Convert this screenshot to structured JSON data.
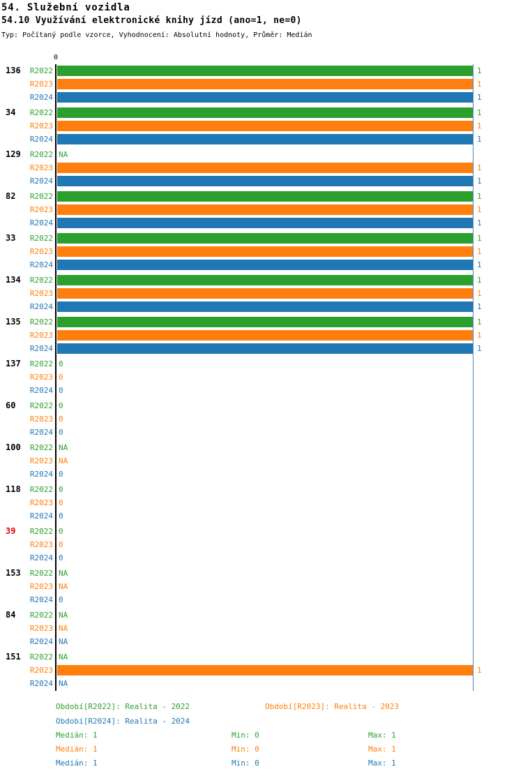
{
  "header": {
    "title1": "54. Služební vozidla",
    "title2": "54.10 Využívání elektronické knihy jízd (ano=1, ne=0)",
    "subtitle": "Typ: Počítaný podle vzorce, Vyhodnocení: Absolutní hodnoty, Průměr: Medián"
  },
  "chart_data": {
    "type": "bar",
    "orientation": "horizontal",
    "title": "54.10 Využívání elektronické knihy jízd (ano=1, ne=0)",
    "xlim": [
      0,
      1
    ],
    "x_zero_tick": "0",
    "na_text": "NA",
    "series": [
      "R2022",
      "R2023",
      "R2024"
    ],
    "series_colors": [
      "#2ca02c",
      "#ff7f0e",
      "#1f77b4"
    ],
    "groups": [
      {
        "id": "136",
        "values": [
          1,
          1,
          1
        ]
      },
      {
        "id": "34",
        "values": [
          1,
          1,
          1
        ]
      },
      {
        "id": "129",
        "values": [
          "NA",
          1,
          1
        ]
      },
      {
        "id": "82",
        "values": [
          1,
          1,
          1
        ]
      },
      {
        "id": "33",
        "values": [
          1,
          1,
          1
        ]
      },
      {
        "id": "134",
        "values": [
          1,
          1,
          1
        ]
      },
      {
        "id": "135",
        "values": [
          1,
          1,
          1
        ]
      },
      {
        "id": "137",
        "values": [
          0,
          0,
          0
        ]
      },
      {
        "id": "60",
        "values": [
          0,
          0,
          0
        ]
      },
      {
        "id": "100",
        "values": [
          "NA",
          "NA",
          0
        ]
      },
      {
        "id": "118",
        "values": [
          0,
          0,
          0
        ]
      },
      {
        "id": "39",
        "values": [
          0,
          0,
          0
        ],
        "highlighted": true
      },
      {
        "id": "153",
        "values": [
          "NA",
          "NA",
          0
        ]
      },
      {
        "id": "84",
        "values": [
          "NA",
          "NA",
          "NA"
        ]
      },
      {
        "id": "151",
        "values": [
          "NA",
          1,
          "NA"
        ]
      }
    ]
  },
  "colors": {
    "r2022": "#2ca02c",
    "r2023": "#ff7f0e",
    "r2024": "#1f77b4",
    "highlight_id": "#ee0000",
    "axis": "#000000",
    "max_line": "#4f81bd"
  },
  "legend": {
    "items": [
      {
        "series": "R2022",
        "label": "Období[R2022]: Realita - 2022"
      },
      {
        "series": "R2023",
        "label": "Období[R2023]: Realita - 2023"
      },
      {
        "series": "R2024",
        "label": "Období[R2024]: Realita - 2024"
      }
    ]
  },
  "stats": {
    "rows": [
      {
        "series": "R2022",
        "median": "Medián: 1",
        "min": "Min: 0",
        "max": "Max: 1"
      },
      {
        "series": "R2023",
        "median": "Medián: 1",
        "min": "Min: 0",
        "max": "Max: 1"
      },
      {
        "series": "R2024",
        "median": "Medián: 1",
        "min": "Min: 0",
        "max": "Max: 1"
      }
    ]
  }
}
